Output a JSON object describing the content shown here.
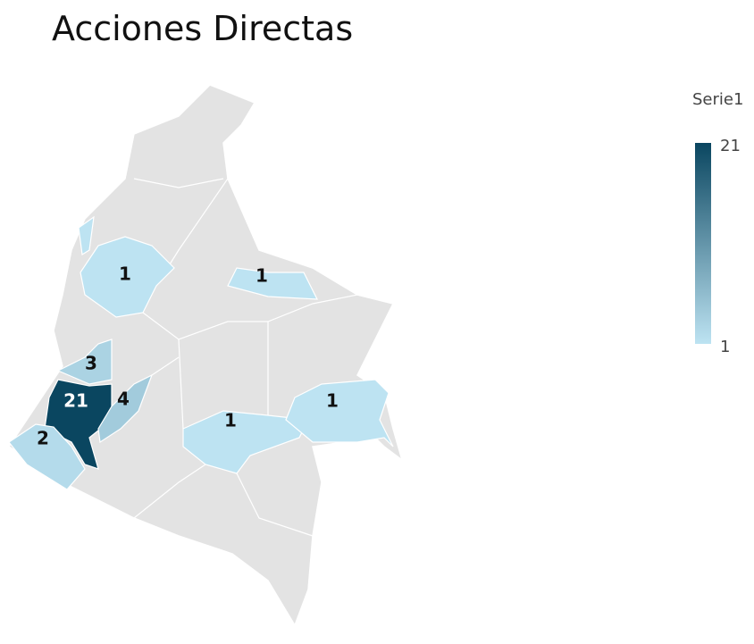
{
  "title": "Acciones Directas",
  "legend": {
    "title": "Serie1",
    "min": 1,
    "max": 21,
    "colors": [
      "#bde3f2",
      "#0a4660"
    ]
  },
  "regions": [
    {
      "value": 1
    },
    {
      "value": 1
    },
    {
      "value": 3
    },
    {
      "value": 21
    },
    {
      "value": 4
    },
    {
      "value": 2
    },
    {
      "value": 1
    },
    {
      "value": 1
    }
  ]
}
